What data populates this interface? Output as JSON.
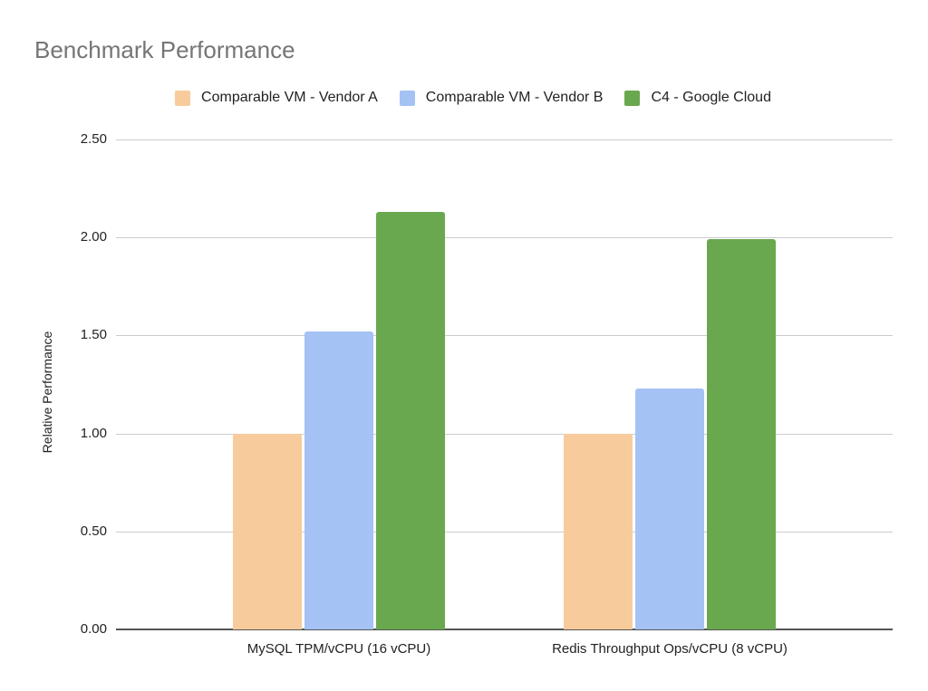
{
  "chart_data": {
    "type": "bar",
    "title": "Benchmark Performance",
    "xlabel": "",
    "ylabel": "Relative Performance",
    "ylim": [
      0,
      2.5
    ],
    "yticks": [
      "0.00",
      "0.50",
      "1.00",
      "1.50",
      "2.00",
      "2.50"
    ],
    "grid": true,
    "legend_position": "top",
    "categories": [
      "MySQL TPM/vCPU (16 vCPU)",
      "Redis Throughput Ops/vCPU (8 vCPU)"
    ],
    "series": [
      {
        "name": "Comparable VM - Vendor A",
        "color": "#f8cb9c",
        "values": [
          1.0,
          1.0
        ]
      },
      {
        "name": "Comparable VM - Vendor B",
        "color": "#a4c2f4",
        "values": [
          1.52,
          1.23
        ]
      },
      {
        "name": "C4 - Google Cloud",
        "color": "#6aa84f",
        "values": [
          2.13,
          1.99
        ]
      }
    ]
  }
}
